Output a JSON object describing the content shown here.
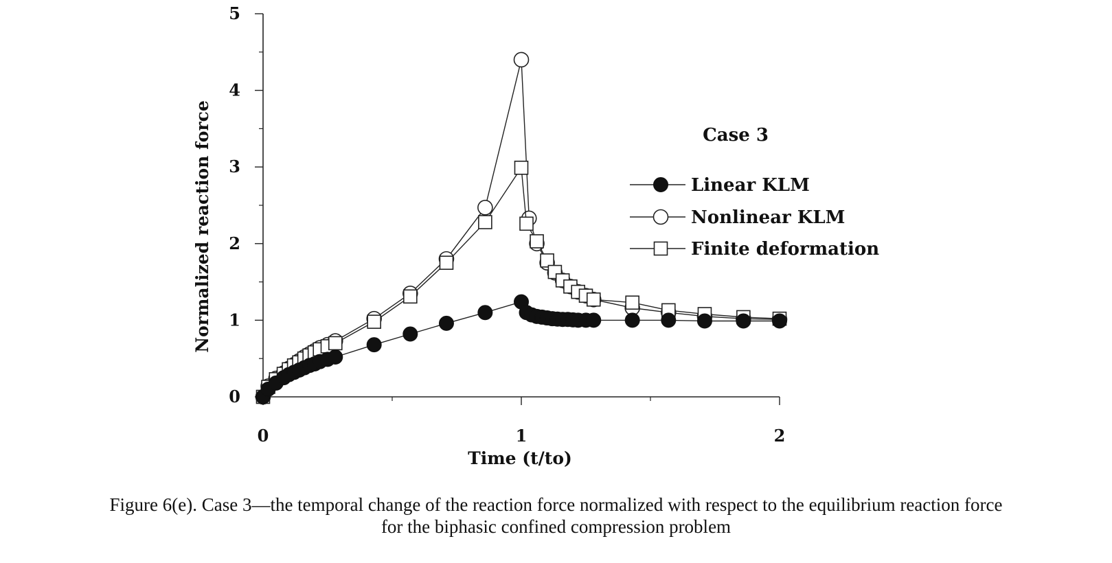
{
  "chart_data": {
    "type": "line",
    "xlabel": "Time  (t/to)",
    "ylabel": "Normalized reaction force",
    "xlim": [
      0,
      2
    ],
    "ylim": [
      0,
      5
    ],
    "x_ticks": [
      "0",
      "1",
      "2"
    ],
    "y_ticks": [
      "0",
      "1",
      "2",
      "3",
      "4",
      "5"
    ],
    "legend_title": "Case 3",
    "legend_position": "right",
    "grid": false,
    "series": [
      {
        "name": "Linear  KLM",
        "marker": "filled-circle",
        "x": [
          0,
          0.02,
          0.05,
          0.08,
          0.1,
          0.12,
          0.14,
          0.16,
          0.18,
          0.2,
          0.22,
          0.25,
          0.28,
          0.43,
          0.57,
          0.71,
          0.86,
          1.0,
          1.02,
          1.04,
          1.06,
          1.08,
          1.1,
          1.12,
          1.14,
          1.16,
          1.18,
          1.2,
          1.22,
          1.25,
          1.28,
          1.43,
          1.57,
          1.71,
          1.86,
          2.0
        ],
        "y": [
          0,
          0.1,
          0.18,
          0.25,
          0.29,
          0.32,
          0.35,
          0.38,
          0.41,
          0.43,
          0.46,
          0.49,
          0.52,
          0.68,
          0.82,
          0.96,
          1.1,
          1.24,
          1.1,
          1.07,
          1.05,
          1.04,
          1.03,
          1.02,
          1.015,
          1.01,
          1.01,
          1.005,
          1.0,
          1.0,
          1.0,
          1.0,
          1.0,
          0.99,
          0.99,
          0.99
        ]
      },
      {
        "name": "Nonlinear  KLM",
        "marker": "open-circle",
        "x": [
          0,
          0.02,
          0.05,
          0.08,
          0.1,
          0.12,
          0.14,
          0.16,
          0.18,
          0.2,
          0.22,
          0.25,
          0.28,
          0.43,
          0.57,
          0.71,
          0.86,
          1.0,
          1.03,
          1.06,
          1.1,
          1.13,
          1.16,
          1.19,
          1.22,
          1.25,
          1.28,
          1.43,
          1.57,
          1.71,
          1.86,
          2.0
        ],
        "y": [
          0,
          0.14,
          0.24,
          0.31,
          0.37,
          0.42,
          0.47,
          0.52,
          0.56,
          0.6,
          0.64,
          0.68,
          0.73,
          1.02,
          1.35,
          1.8,
          2.47,
          4.4,
          2.33,
          2.0,
          1.75,
          1.62,
          1.52,
          1.44,
          1.37,
          1.32,
          1.27,
          1.16,
          1.1,
          1.05,
          1.02,
          1.01
        ]
      },
      {
        "name": "Finite  deformation",
        "marker": "open-square",
        "x": [
          0,
          0.02,
          0.05,
          0.08,
          0.1,
          0.12,
          0.14,
          0.16,
          0.18,
          0.2,
          0.22,
          0.25,
          0.28,
          0.43,
          0.57,
          0.71,
          0.86,
          1.0,
          1.02,
          1.06,
          1.1,
          1.13,
          1.16,
          1.19,
          1.22,
          1.25,
          1.28,
          1.43,
          1.57,
          1.71,
          1.86,
          2.0
        ],
        "y": [
          0,
          0.13,
          0.23,
          0.3,
          0.36,
          0.41,
          0.45,
          0.5,
          0.54,
          0.58,
          0.62,
          0.66,
          0.7,
          0.98,
          1.31,
          1.75,
          2.28,
          2.99,
          2.26,
          2.03,
          1.78,
          1.63,
          1.52,
          1.44,
          1.37,
          1.32,
          1.27,
          1.23,
          1.13,
          1.08,
          1.04,
          1.02
        ]
      }
    ]
  },
  "caption": {
    "line1": "Figure 6(e).  Case 3—the temporal change of the reaction force normalized with respect to the equilibrium reaction force",
    "line2": "for the biphasic confined compression problem"
  }
}
